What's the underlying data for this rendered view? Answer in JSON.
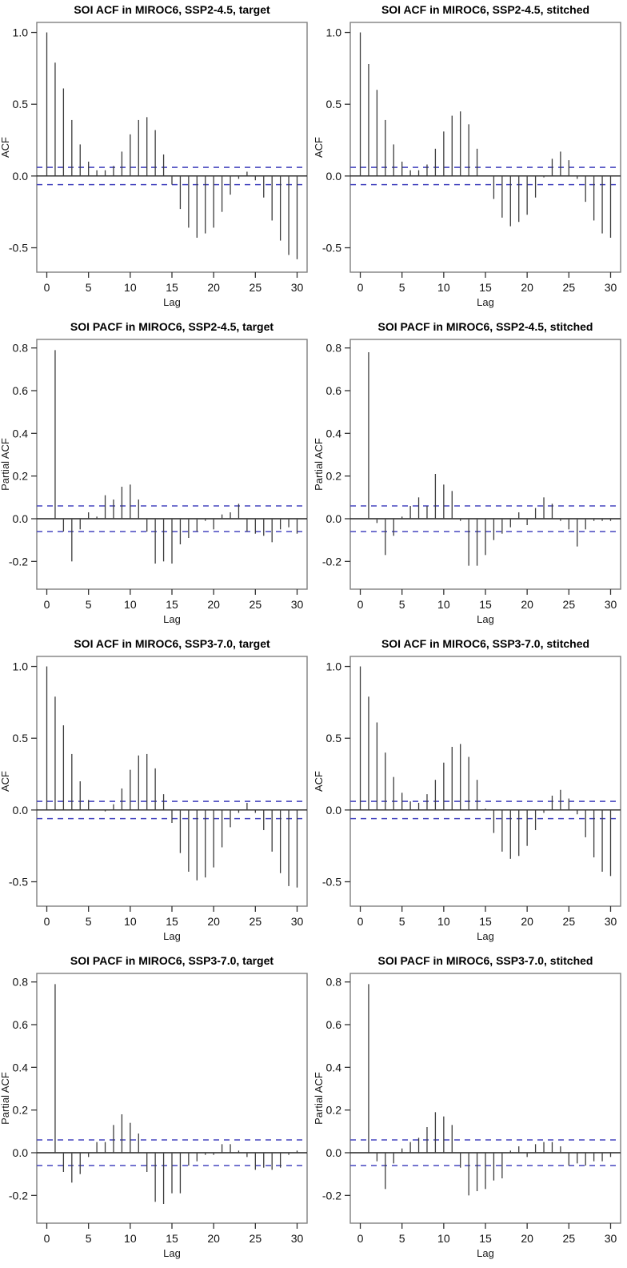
{
  "figure": {
    "background": "#ffffff",
    "bar_color": "#3c3c3c",
    "zero_line_color": "#222222",
    "ci_line_color": "#4545bf",
    "box_color": "#808080",
    "tick_color": "#333333"
  },
  "chart_data": [
    {
      "type": "bar",
      "kind": "acf",
      "title": "SOI ACF in MIROC6, SSP2-4.5, target",
      "xlabel": "Lag",
      "ylabel": "ACF",
      "start_lag": 0,
      "conf_band": 0.06,
      "xlim": [
        -1.2,
        31.2
      ],
      "ylim": [
        -0.67,
        1.07
      ],
      "yticks": [
        -0.5,
        0.0,
        0.5,
        1.0
      ],
      "xticks": [
        0,
        5,
        10,
        15,
        20,
        25,
        30
      ],
      "values": [
        1.0,
        0.79,
        0.61,
        0.39,
        0.22,
        0.1,
        0.04,
        0.04,
        0.07,
        0.17,
        0.29,
        0.39,
        0.41,
        0.32,
        0.15,
        -0.06,
        -0.23,
        -0.36,
        -0.43,
        -0.4,
        -0.36,
        -0.25,
        -0.13,
        -0.02,
        0.03,
        -0.03,
        -0.15,
        -0.31,
        -0.45,
        -0.55,
        -0.58
      ]
    },
    {
      "type": "bar",
      "kind": "acf",
      "title": "SOI ACF in MIROC6, SSP2-4.5, stitched",
      "xlabel": "Lag",
      "ylabel": "ACF",
      "start_lag": 0,
      "conf_band": 0.06,
      "xlim": [
        -1.2,
        31.2
      ],
      "ylim": [
        -0.67,
        1.07
      ],
      "yticks": [
        -0.5,
        0.0,
        0.5,
        1.0
      ],
      "xticks": [
        0,
        5,
        10,
        15,
        20,
        25,
        30
      ],
      "values": [
        1.0,
        0.78,
        0.6,
        0.39,
        0.22,
        0.1,
        0.04,
        0.04,
        0.08,
        0.19,
        0.31,
        0.42,
        0.45,
        0.36,
        0.19,
        0.0,
        -0.16,
        -0.29,
        -0.35,
        -0.32,
        -0.27,
        -0.15,
        -0.01,
        0.12,
        0.17,
        0.11,
        -0.02,
        -0.18,
        -0.31,
        -0.4,
        -0.43
      ]
    },
    {
      "type": "bar",
      "kind": "pacf",
      "title": "SOI PACF in MIROC6, SSP2-4.5, target",
      "xlabel": "Lag",
      "ylabel": "Partial ACF",
      "start_lag": 1,
      "conf_band": 0.06,
      "xlim": [
        -1.2,
        31.2
      ],
      "ylim": [
        -0.33,
        0.84
      ],
      "yticks": [
        -0.2,
        0.0,
        0.2,
        0.4,
        0.6,
        0.8
      ],
      "xticks": [
        0,
        5,
        10,
        15,
        20,
        25,
        30
      ],
      "values": [
        0.79,
        -0.06,
        -0.2,
        -0.05,
        0.03,
        0.01,
        0.11,
        0.09,
        0.15,
        0.16,
        0.09,
        -0.06,
        -0.21,
        -0.2,
        -0.21,
        -0.12,
        -0.09,
        -0.06,
        -0.01,
        -0.05,
        0.02,
        0.03,
        0.07,
        -0.06,
        -0.07,
        -0.08,
        -0.11,
        -0.05,
        -0.04,
        -0.07
      ]
    },
    {
      "type": "bar",
      "kind": "pacf",
      "title": "SOI PACF in MIROC6, SSP2-4.5, stitched",
      "xlabel": "Lag",
      "ylabel": "Partial ACF",
      "start_lag": 1,
      "conf_band": 0.06,
      "xlim": [
        -1.2,
        31.2
      ],
      "ylim": [
        -0.33,
        0.84
      ],
      "yticks": [
        -0.2,
        0.0,
        0.2,
        0.4,
        0.6,
        0.8
      ],
      "xticks": [
        0,
        5,
        10,
        15,
        20,
        25,
        30
      ],
      "values": [
        0.78,
        -0.02,
        -0.17,
        -0.08,
        0.01,
        0.06,
        0.1,
        0.06,
        0.21,
        0.16,
        0.13,
        -0.01,
        -0.22,
        -0.22,
        -0.17,
        -0.1,
        -0.07,
        -0.04,
        0.03,
        -0.03,
        0.05,
        0.1,
        0.07,
        -0.01,
        -0.05,
        -0.13,
        -0.05,
        -0.01,
        -0.01,
        -0.01
      ]
    },
    {
      "type": "bar",
      "kind": "acf",
      "title": "SOI ACF in MIROC6, SSP3-7.0, target",
      "xlabel": "Lag",
      "ylabel": "ACF",
      "start_lag": 0,
      "conf_band": 0.06,
      "xlim": [
        -1.2,
        31.2
      ],
      "ylim": [
        -0.67,
        1.07
      ],
      "yticks": [
        -0.5,
        0.0,
        0.5,
        1.0
      ],
      "xticks": [
        0,
        5,
        10,
        15,
        20,
        25,
        30
      ],
      "values": [
        1.0,
        0.79,
        0.59,
        0.39,
        0.2,
        0.07,
        0.0,
        -0.01,
        0.04,
        0.15,
        0.28,
        0.38,
        0.39,
        0.29,
        0.11,
        -0.09,
        -0.3,
        -0.43,
        -0.49,
        -0.47,
        -0.4,
        -0.26,
        -0.12,
        -0.02,
        0.05,
        -0.02,
        -0.14,
        -0.29,
        -0.44,
        -0.53,
        -0.54
      ]
    },
    {
      "type": "bar",
      "kind": "acf",
      "title": "SOI ACF in MIROC6, SSP3-7.0, stitched",
      "xlabel": "Lag",
      "ylabel": "ACF",
      "start_lag": 0,
      "conf_band": 0.06,
      "xlim": [
        -1.2,
        31.2
      ],
      "ylim": [
        -0.67,
        1.07
      ],
      "yticks": [
        -0.5,
        0.0,
        0.5,
        1.0
      ],
      "xticks": [
        0,
        5,
        10,
        15,
        20,
        25,
        30
      ],
      "values": [
        1.0,
        0.79,
        0.61,
        0.4,
        0.23,
        0.12,
        0.06,
        0.05,
        0.11,
        0.21,
        0.33,
        0.44,
        0.46,
        0.37,
        0.21,
        0.01,
        -0.16,
        -0.29,
        -0.34,
        -0.32,
        -0.25,
        -0.14,
        -0.02,
        0.1,
        0.14,
        0.08,
        -0.03,
        -0.19,
        -0.33,
        -0.43,
        -0.46
      ]
    },
    {
      "type": "bar",
      "kind": "pacf",
      "title": "SOI PACF in MIROC6, SSP3-7.0, target",
      "xlabel": "Lag",
      "ylabel": "Partial ACF",
      "start_lag": 1,
      "conf_band": 0.06,
      "xlim": [
        -1.2,
        31.2
      ],
      "ylim": [
        -0.33,
        0.84
      ],
      "yticks": [
        -0.2,
        0.0,
        0.2,
        0.4,
        0.6,
        0.8
      ],
      "xticks": [
        0,
        5,
        10,
        15,
        20,
        25,
        30
      ],
      "values": [
        0.79,
        -0.09,
        -0.14,
        -0.1,
        -0.02,
        0.05,
        0.05,
        0.13,
        0.18,
        0.14,
        0.09,
        -0.09,
        -0.23,
        -0.24,
        -0.19,
        -0.19,
        -0.06,
        -0.04,
        -0.01,
        -0.01,
        0.04,
        0.04,
        0.01,
        -0.02,
        -0.08,
        -0.07,
        -0.08,
        -0.07,
        -0.01,
        0.01
      ]
    },
    {
      "type": "bar",
      "kind": "pacf",
      "title": "SOI PACF in MIROC6, SSP3-7.0, stitched",
      "xlabel": "Lag",
      "ylabel": "Partial ACF",
      "start_lag": 1,
      "conf_band": 0.06,
      "xlim": [
        -1.2,
        31.2
      ],
      "ylim": [
        -0.33,
        0.84
      ],
      "yticks": [
        -0.2,
        0.0,
        0.2,
        0.4,
        0.6,
        0.8
      ],
      "xticks": [
        0,
        5,
        10,
        15,
        20,
        25,
        30
      ],
      "values": [
        0.79,
        -0.04,
        -0.17,
        -0.05,
        0.02,
        0.05,
        0.07,
        0.12,
        0.19,
        0.17,
        0.13,
        -0.07,
        -0.2,
        -0.18,
        -0.17,
        -0.13,
        -0.12,
        0.01,
        0.03,
        -0.02,
        0.04,
        0.05,
        0.05,
        0.03,
        -0.06,
        -0.05,
        -0.06,
        -0.04,
        -0.04,
        -0.02
      ]
    }
  ]
}
